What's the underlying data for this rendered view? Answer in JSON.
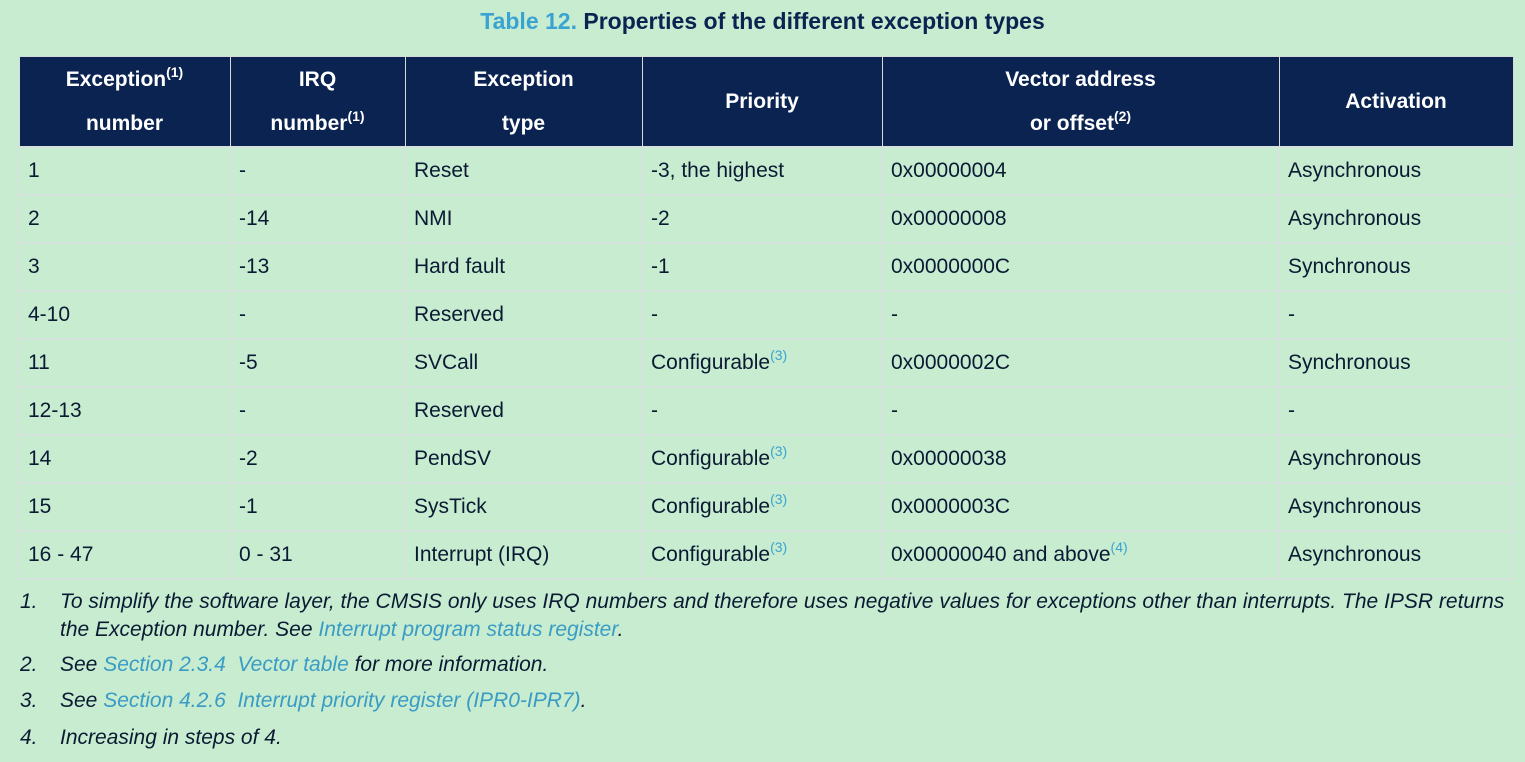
{
  "title": {
    "label": "Table 12.",
    "text": "Properties of the different exception types"
  },
  "table": {
    "header": [
      {
        "lines": [
          {
            "text": "Exception",
            "sup": "(1)"
          },
          {
            "text": "number"
          }
        ]
      },
      {
        "lines": [
          {
            "text": "IRQ"
          },
          {
            "text": "number",
            "sup": "(1)"
          }
        ]
      },
      {
        "lines": [
          {
            "text": "Exception"
          },
          {
            "text": "type"
          }
        ]
      },
      {
        "lines": [
          {
            "text": "Priority"
          }
        ]
      },
      {
        "lines": [
          {
            "text": "Vector address"
          },
          {
            "text": "or offset",
            "sup": "(2)"
          }
        ]
      },
      {
        "lines": [
          {
            "text": "Activation"
          }
        ]
      }
    ],
    "rows": [
      [
        {
          "text": "1"
        },
        {
          "text": "-"
        },
        {
          "text": "Reset"
        },
        {
          "text": "-3, the highest"
        },
        {
          "text": "0x00000004"
        },
        {
          "text": "Asynchronous"
        }
      ],
      [
        {
          "text": "2"
        },
        {
          "text": "-14"
        },
        {
          "text": "NMI"
        },
        {
          "text": "-2"
        },
        {
          "text": "0x00000008"
        },
        {
          "text": "Asynchronous"
        }
      ],
      [
        {
          "text": "3"
        },
        {
          "text": "-13"
        },
        {
          "text": "Hard fault"
        },
        {
          "text": "-1"
        },
        {
          "text": "0x0000000C"
        },
        {
          "text": "Synchronous"
        }
      ],
      [
        {
          "text": "4-10"
        },
        {
          "text": "-"
        },
        {
          "text": "Reserved"
        },
        {
          "text": "-"
        },
        {
          "text": "-"
        },
        {
          "text": "-"
        }
      ],
      [
        {
          "text": "11"
        },
        {
          "text": "-5"
        },
        {
          "text": "SVCall"
        },
        {
          "text": "Configurable",
          "sup": "(3)"
        },
        {
          "text": "0x0000002C"
        },
        {
          "text": "Synchronous"
        }
      ],
      [
        {
          "text": "12-13"
        },
        {
          "text": "-"
        },
        {
          "text": "Reserved"
        },
        {
          "text": "-"
        },
        {
          "text": "-"
        },
        {
          "text": "-"
        }
      ],
      [
        {
          "text": "14"
        },
        {
          "text": "-2"
        },
        {
          "text": "PendSV"
        },
        {
          "text": "Configurable",
          "sup": "(3)"
        },
        {
          "text": "0x00000038"
        },
        {
          "text": "Asynchronous"
        }
      ],
      [
        {
          "text": "15"
        },
        {
          "text": "-1"
        },
        {
          "text": "SysTick"
        },
        {
          "text": "Configurable",
          "sup": "(3)"
        },
        {
          "text": "0x0000003C"
        },
        {
          "text": "Asynchronous"
        }
      ],
      [
        {
          "text": "16 - 47"
        },
        {
          "text": "0 - 31"
        },
        {
          "text": "Interrupt (IRQ)"
        },
        {
          "text": "Configurable",
          "sup": "(3)"
        },
        {
          "text": "0x00000040 and above",
          "sup": "(4)"
        },
        {
          "text": "Asynchronous"
        }
      ]
    ]
  },
  "footnotes": [
    {
      "number": "1.",
      "parts": [
        {
          "text": "To simplify the software layer, the CMSIS only uses IRQ numbers and therefore uses negative values for exceptions other than interrupts. The IPSR returns the Exception number. See "
        },
        {
          "text": "Interrupt program status register",
          "link": true
        },
        {
          "text": "."
        }
      ]
    },
    {
      "number": "2.",
      "parts": [
        {
          "text": "See "
        },
        {
          "text": "Section 2.3.4  Vector table",
          "link": true
        },
        {
          "text": " for more information."
        }
      ]
    },
    {
      "number": "3.",
      "parts": [
        {
          "text": "See "
        },
        {
          "text": "Section 4.2.6  Interrupt priority register (IPR0-IPR7)",
          "link": true
        },
        {
          "text": "."
        }
      ]
    },
    {
      "number": "4.",
      "parts": [
        {
          "text": "Increasing in steps of 4."
        }
      ]
    }
  ]
}
